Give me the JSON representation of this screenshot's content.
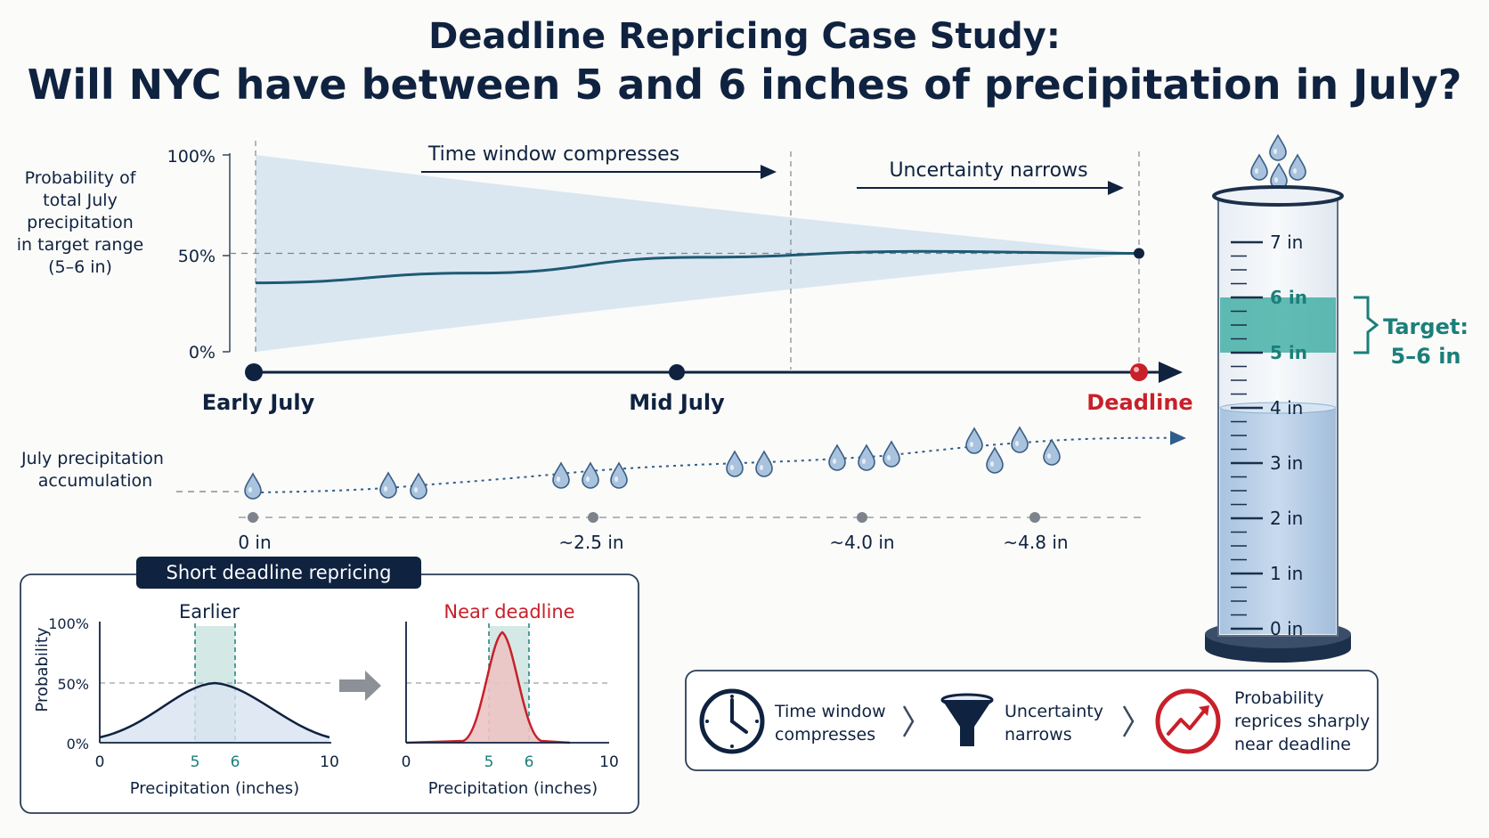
{
  "title": {
    "line1": "Deadline Repricing Case Study:",
    "line2": "Will NYC have between 5 and 6 inches of precipitation in July?"
  },
  "top_chart": {
    "ylabel_lines": [
      "Probability of",
      "total July",
      "precipitation",
      "in target range",
      "(5–6 in)"
    ],
    "ytick_labels": [
      "100%",
      "50%",
      "0%"
    ],
    "annotation_left": "Time window compresses",
    "annotation_right": "Uncertainty narrows"
  },
  "chart_data": {
    "type": "area",
    "x_categories": [
      "Early July",
      "Mid July",
      "Deadline"
    ],
    "ylim": [
      0,
      100
    ],
    "series": [
      {
        "points": [
          [
            0,
            35
          ],
          [
            0.25,
            40
          ],
          [
            0.5,
            48
          ],
          [
            0.75,
            51
          ],
          [
            1,
            50
          ]
        ]
      }
    ],
    "band_upper": [
      [
        0,
        100
      ],
      [
        0.5,
        72
      ],
      [
        1,
        50
      ]
    ],
    "band_lower": [
      [
        0,
        0
      ],
      [
        0.5,
        28
      ],
      [
        1,
        50
      ]
    ],
    "reference_line": 50
  },
  "timeline": {
    "labels": [
      "Early July",
      "Mid July",
      "Deadline"
    ]
  },
  "accumulation": {
    "label_lines": [
      "July precipitation",
      "accumulation"
    ],
    "ticks": [
      "0 in",
      "~2.5 in",
      "~4.0 in",
      "~4.8 in"
    ]
  },
  "inset": {
    "title": "Short deadline repricing",
    "left": {
      "heading": "Earlier",
      "ylabel": "Probability",
      "yticks": [
        "100%",
        "50%",
        "0%"
      ],
      "xticks": [
        "0",
        "5",
        "6",
        "10"
      ],
      "xlabel": "Precipitation (inches)"
    },
    "right": {
      "heading": "Near deadline",
      "xticks": [
        "0",
        "5",
        "6",
        "10"
      ],
      "xlabel": "Precipitation (inches)"
    }
  },
  "cylinder": {
    "scale": [
      "7 in",
      "6 in",
      "5 in",
      "4 in",
      "3 in",
      "2 in",
      "1 in",
      "0 in"
    ],
    "target_lines": [
      "Target:",
      "5–6 in"
    ],
    "fill_level_in": 4.0
  },
  "legend": {
    "items": [
      {
        "icon": "clock-icon",
        "lines": [
          "Time window",
          "compresses"
        ]
      },
      {
        "icon": "funnel-icon",
        "lines": [
          "Uncertainty",
          "narrows"
        ]
      },
      {
        "icon": "trend-up-icon",
        "lines": [
          "Probability",
          "reprices sharply",
          "near deadline"
        ]
      }
    ]
  },
  "colors": {
    "navy": "#0f2240",
    "teal": "#1b7f7a",
    "red": "#c8202a",
    "band": "#d8e6f0",
    "water": "#bcd3ea"
  }
}
